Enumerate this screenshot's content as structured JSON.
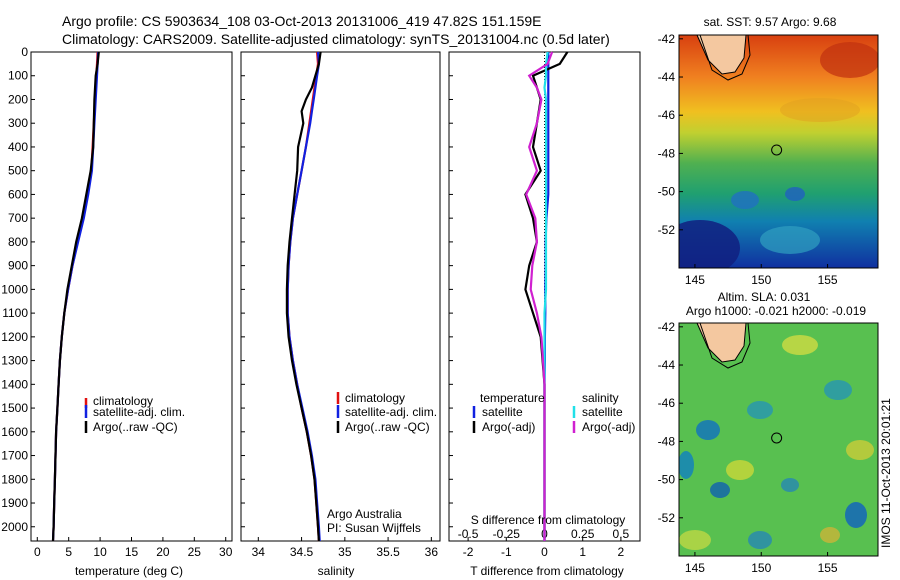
{
  "title": {
    "line1": "Argo profile: CS 5903634_108 03-Oct-2013 20131006_419 47.82S 151.159E",
    "line2": "Climatology: CARS2009. Satellite-adjusted climatology: synTS_20131004.nc (0.5d later)"
  },
  "colors": {
    "climatology": "#e01010",
    "satellite": "#1020e0",
    "argo": "#000000",
    "sal_satellite": "#20e0e8",
    "sal_argo": "#d020d0"
  },
  "chart_data": [
    {
      "type": "line",
      "xlabel": "temperature (deg C)",
      "ylabel": "",
      "xlim": [
        -1,
        31
      ],
      "ylim": [
        2060,
        0
      ],
      "xticks": [
        "0",
        "5",
        "10",
        "15",
        "20",
        "25",
        "30"
      ],
      "yticks": [
        "0",
        "100",
        "200",
        "300",
        "400",
        "500",
        "600",
        "700",
        "800",
        "900",
        "1000",
        "1100",
        "1200",
        "1300",
        "1400",
        "1500",
        "1600",
        "1700",
        "1800",
        "1900",
        "2000"
      ],
      "legend": [
        "climatology",
        "satellite-adj. clim.",
        "Argo(..raw -QC)"
      ],
      "depth": [
        0,
        50,
        100,
        200,
        300,
        400,
        500,
        600,
        700,
        800,
        900,
        1000,
        1100,
        1200,
        1300,
        1400,
        1500,
        1600,
        1700,
        1800,
        1900,
        2000,
        2060
      ],
      "series": [
        {
          "name": "climatology",
          "color": "#e01010",
          "values": [
            9.6,
            9.5,
            9.4,
            9.2,
            9.0,
            8.8,
            8.6,
            8.0,
            7.3,
            6.4,
            5.6,
            4.9,
            4.3,
            3.9,
            3.6,
            3.4,
            3.2,
            3.0,
            2.9,
            2.8,
            2.7,
            2.6,
            2.5
          ]
        },
        {
          "name": "satellite-adj. clim.",
          "color": "#1020e0",
          "values": [
            9.7,
            9.6,
            9.5,
            9.3,
            9.1,
            8.9,
            8.7,
            8.1,
            7.4,
            6.5,
            5.6,
            4.9,
            4.3,
            3.9,
            3.6,
            3.4,
            3.2,
            3.0,
            2.9,
            2.8,
            2.7,
            2.6,
            2.5
          ]
        },
        {
          "name": "Argo(..raw -QC)",
          "color": "#000000",
          "values": [
            9.8,
            9.6,
            9.3,
            9.1,
            9.0,
            8.9,
            8.5,
            7.8,
            7.1,
            6.2,
            5.5,
            4.8,
            4.3,
            3.9,
            3.6,
            3.4,
            3.2,
            3.0,
            2.9,
            2.8,
            2.7,
            2.6,
            2.5
          ]
        }
      ]
    },
    {
      "type": "line",
      "xlabel": "salinity",
      "xlim": [
        33.8,
        36.1
      ],
      "ylim": [
        2060,
        0
      ],
      "xticks": [
        "34",
        "34.5",
        "35",
        "35.5",
        "36"
      ],
      "legend": [
        "climatology",
        "satellite-adj. clim.",
        "Argo(..raw -QC)"
      ],
      "annotation": [
        "Argo Australia",
        "PI: Susan Wijffels"
      ],
      "depth": [
        0,
        50,
        100,
        150,
        200,
        250,
        300,
        400,
        500,
        600,
        700,
        800,
        900,
        1000,
        1100,
        1200,
        1300,
        1400,
        1500,
        1600,
        1700,
        1800,
        1900,
        2000,
        2060
      ],
      "series": [
        {
          "name": "climatology",
          "color": "#e01010",
          "values": [
            34.68,
            34.69,
            34.67,
            34.65,
            34.63,
            34.61,
            34.59,
            34.55,
            34.5,
            34.45,
            34.4,
            34.37,
            34.35,
            34.34,
            34.34,
            34.36,
            34.4,
            34.45,
            34.5,
            34.56,
            34.61,
            34.65,
            34.67,
            34.69,
            34.7
          ]
        },
        {
          "name": "satellite-adj. clim.",
          "color": "#1020e0",
          "values": [
            34.69,
            34.7,
            34.68,
            34.66,
            34.64,
            34.62,
            34.6,
            34.55,
            34.5,
            34.45,
            34.4,
            34.37,
            34.35,
            34.34,
            34.34,
            34.36,
            34.4,
            34.45,
            34.51,
            34.57,
            34.62,
            34.66,
            34.68,
            34.7,
            34.71
          ]
        },
        {
          "name": "Argo(..raw -QC)",
          "color": "#000000",
          "values": [
            34.72,
            34.7,
            34.66,
            34.62,
            34.55,
            34.5,
            34.52,
            34.46,
            34.45,
            34.42,
            34.39,
            34.36,
            34.34,
            34.33,
            34.33,
            34.35,
            34.39,
            34.44,
            34.5,
            34.56,
            34.61,
            34.65,
            34.67,
            34.69,
            34.7
          ]
        }
      ]
    },
    {
      "type": "line",
      "xlabel": "T difference from climatology",
      "secondary_xlabel": "S difference from climatology",
      "xlim": [
        -2.5,
        2.5
      ],
      "ylim": [
        2060,
        0
      ],
      "xticks": [
        "-2",
        "-1",
        "0",
        "1",
        "2"
      ],
      "secondary_xticks": [
        "-0.5",
        "-0.25",
        "0",
        "0.25",
        "0.5"
      ],
      "legend_headers": [
        "temperature",
        "salinity"
      ],
      "legend": [
        "satellite",
        "Argo(-adj)",
        "satellite",
        "Argo(-adj)"
      ],
      "depth": [
        0,
        50,
        100,
        150,
        200,
        300,
        400,
        500,
        600,
        700,
        800,
        900,
        1000,
        1100,
        1200,
        1300,
        1400,
        1500,
        1600,
        1700,
        1800,
        1900,
        2000,
        2060
      ],
      "series": [
        {
          "name": "satellite",
          "group": "temperature",
          "color": "#1020e0",
          "values": [
            0.1,
            0.1,
            0.1,
            0.1,
            0.1,
            0.1,
            0.1,
            0.1,
            0.1,
            0.05,
            0.03,
            0.03,
            0.02,
            0.02,
            0.01,
            0.01,
            0,
            0,
            0,
            0,
            0,
            0,
            0,
            0
          ]
        },
        {
          "name": "Argo(-adj)",
          "group": "temperature",
          "color": "#000000",
          "values": [
            0.6,
            0.4,
            -0.3,
            -0.2,
            -0.1,
            -0.2,
            -0.3,
            -0.1,
            -0.5,
            -0.3,
            -0.2,
            -0.4,
            -0.5,
            -0.3,
            -0.1,
            -0.05,
            0,
            0,
            0,
            0,
            0,
            0,
            0,
            0
          ]
        },
        {
          "name": "satellite",
          "group": "salinity",
          "color": "#20e0e8",
          "values": [
            0.02,
            0.01,
            0.01,
            0.0,
            0.01,
            0.01,
            0.01,
            0.01,
            0.01,
            0.01,
            0.01,
            0.01,
            0.01,
            0.0,
            0.0,
            0.0,
            0.0,
            0.0,
            0.0,
            0.0,
            0.0,
            0.0,
            0.0,
            0.0
          ]
        },
        {
          "name": "Argo(-adj)",
          "group": "salinity",
          "color": "#d020d0",
          "values": [
            0.05,
            0.02,
            -0.1,
            -0.05,
            -0.02,
            -0.05,
            -0.1,
            -0.05,
            -0.12,
            -0.06,
            -0.05,
            -0.08,
            -0.09,
            -0.05,
            -0.02,
            -0.01,
            0,
            0,
            0,
            0,
            0,
            0,
            0,
            0
          ]
        }
      ]
    },
    {
      "type": "heatmap",
      "title": "sat. SST: 9.57 Argo: 9.68",
      "xticks": [
        "145",
        "150",
        "155"
      ],
      "yticks": [
        "-42",
        "-44",
        "-46",
        "-48",
        "-50",
        "-52"
      ],
      "float_position": {
        "lon": 151.159,
        "lat": -47.82
      }
    },
    {
      "type": "heatmap",
      "title": "Altim. SLA: 0.031",
      "subtitle": "Argo h1000: -0.021 h2000: -0.019",
      "xticks": [
        "145",
        "150",
        "155"
      ],
      "yticks": [
        "-42",
        "-44",
        "-46",
        "-48",
        "-50",
        "-52"
      ],
      "float_position": {
        "lon": 151.159,
        "lat": -47.82
      }
    }
  ],
  "footer": {
    "imos_stamp": "IMOS 11-Oct-2013 20:01:21"
  }
}
